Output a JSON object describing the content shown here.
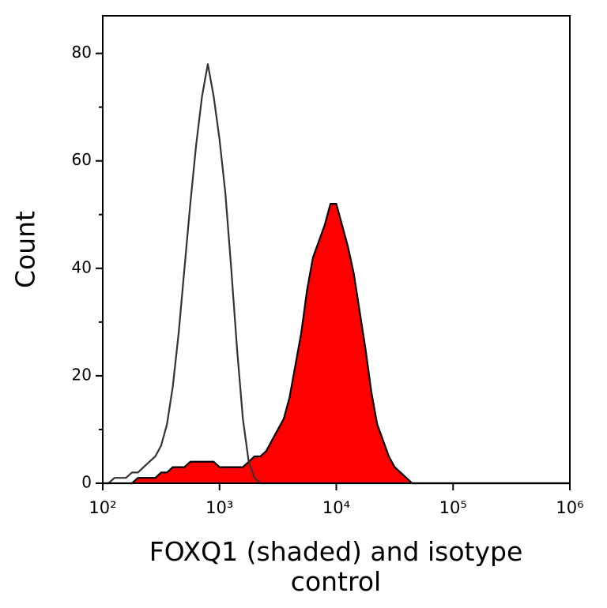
{
  "chart_data": {
    "type": "histogram-overlay",
    "xlabel": "FOXQ1 (shaded) and isotype control",
    "ylabel": "Count",
    "xlog": true,
    "xlim": [
      100,
      1000000
    ],
    "xticks": [
      {
        "value": 100,
        "label": "10²"
      },
      {
        "value": 1000,
        "label": "10³"
      },
      {
        "value": 10000,
        "label": "10⁴"
      },
      {
        "value": 100000,
        "label": "10⁵"
      },
      {
        "value": 1000000,
        "label": "10⁶"
      }
    ],
    "ylim": [
      0,
      87
    ],
    "yticks": [
      0,
      20,
      40,
      60,
      80
    ],
    "yminorticks": [
      10,
      30,
      50,
      70
    ],
    "x": [
      100,
      112,
      126,
      141,
      158,
      178,
      200,
      224,
      251,
      282,
      316,
      355,
      398,
      447,
      501,
      562,
      631,
      708,
      794,
      891,
      1000,
      1122,
      1259,
      1413,
      1585,
      1778,
      1995,
      2239,
      2512,
      2818,
      3162,
      3548,
      3981,
      4467,
      5012,
      5623,
      6310,
      7079,
      7943,
      8913,
      10000,
      11220,
      12589,
      14125,
      15849,
      17783,
      19953,
      22387,
      25119,
      28184,
      31623,
      35481,
      39811,
      44668,
      50119,
      56234,
      63096,
      70795,
      79433,
      89125,
      100000,
      1000000
    ],
    "series": [
      {
        "name": "FOXQ1",
        "style": "filled",
        "color": "#ff0000",
        "edge": "#000000",
        "values": [
          0,
          0,
          0,
          0,
          0,
          0,
          1,
          1,
          1,
          1,
          2,
          2,
          3,
          3,
          3,
          4,
          4,
          4,
          4,
          4,
          3,
          3,
          3,
          3,
          3,
          4,
          5,
          5,
          6,
          8,
          10,
          12,
          16,
          22,
          28,
          36,
          42,
          45,
          48,
          52,
          52,
          48,
          44,
          39,
          32,
          25,
          17,
          11,
          8,
          5,
          3,
          2,
          1,
          0,
          0,
          0,
          0,
          0,
          0,
          0,
          0,
          0
        ]
      },
      {
        "name": "isotype control",
        "style": "line",
        "color": "#333333",
        "values": [
          0,
          0,
          1,
          1,
          1,
          2,
          2,
          3,
          4,
          5,
          7,
          11,
          18,
          28,
          40,
          52,
          63,
          72,
          78,
          72,
          64,
          54,
          40,
          25,
          12,
          4,
          1,
          0,
          0,
          0,
          0,
          0,
          0,
          0,
          0,
          0,
          0,
          0,
          0,
          0,
          0,
          0,
          0,
          0,
          0,
          0,
          0,
          0,
          0,
          0,
          0,
          0,
          0,
          0,
          0,
          0,
          0,
          0,
          0,
          0,
          0,
          0
        ]
      }
    ]
  }
}
